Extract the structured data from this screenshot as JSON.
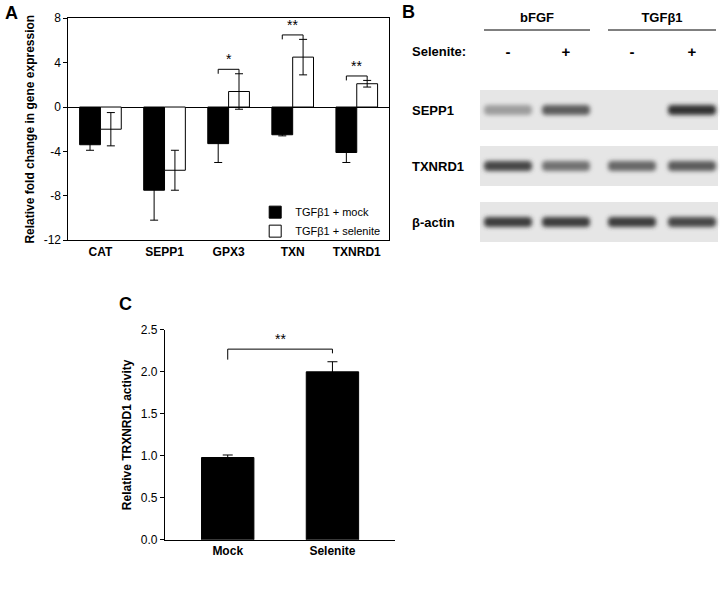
{
  "chart_data": [
    {
      "panel": "A",
      "type": "bar",
      "categories": [
        "CAT",
        "SEPP1",
        "GPX3",
        "TXN",
        "TXNRD1"
      ],
      "series": [
        {
          "name": "TGFβ1 + mock",
          "color": "#000000",
          "values": [
            -3.4,
            -7.5,
            -3.3,
            -2.5,
            -4.1
          ],
          "errors": [
            0.5,
            2.7,
            1.7,
            0.1,
            0.9
          ]
        },
        {
          "name": "TGFβ1 + selenite",
          "color": "#ffffff",
          "values": [
            -2.0,
            -5.7,
            1.4,
            4.5,
            2.1
          ],
          "errors": [
            1.5,
            1.8,
            1.6,
            1.6,
            0.3
          ]
        }
      ],
      "y_label": "Relative fold change in gene expression",
      "ylim": [
        -12,
        8
      ],
      "yticks": [
        -12,
        -8,
        -4,
        0,
        4,
        8
      ],
      "legend": "lower right",
      "significance": [
        {
          "categories": [
            "GPX3"
          ],
          "text": "*"
        },
        {
          "categories": [
            "TXN"
          ],
          "text": "**"
        },
        {
          "categories": [
            "TXNRD1"
          ],
          "text": "**"
        }
      ]
    },
    {
      "panel": "C",
      "type": "bar",
      "categories": [
        "Mock",
        "Selenite"
      ],
      "values": [
        0.98,
        2.0
      ],
      "errors": [
        0.03,
        0.12
      ],
      "color": "#000000",
      "y_label": "Relative TRXNRD1 activity",
      "ylim": [
        0,
        2.5
      ],
      "yticks": [
        {
          "value": 0,
          "label": "0.0"
        },
        {
          "value": 0.5,
          "label": "0.5"
        },
        {
          "value": 1,
          "label": "1.0"
        },
        {
          "value": 1.5,
          "label": "1.5"
        },
        {
          "value": 2,
          "label": "2.0"
        },
        {
          "value": 2.5,
          "label": "2.5"
        }
      ],
      "significance": [
        {
          "categories": [
            "Mock",
            "Selenite"
          ],
          "text": "**"
        }
      ]
    }
  ],
  "blot": {
    "panel": "B",
    "groups": [
      {
        "label": "bFGF",
        "lanes": [
          0,
          1
        ]
      },
      {
        "label": "TGFβ1",
        "lanes": [
          2,
          3
        ]
      }
    ],
    "treatment_label": "Selenite:",
    "treatment": [
      "-",
      "+",
      "-",
      "+"
    ],
    "rows": [
      {
        "label": "SEPP1",
        "intensity": [
          0.45,
          0.75,
          0,
          0.95
        ]
      },
      {
        "label": "TXNRD1",
        "intensity": [
          0.85,
          0.65,
          0.7,
          0.75
        ]
      },
      {
        "label": "β-actin",
        "intensity": [
          0.9,
          0.9,
          0.9,
          0.85
        ]
      }
    ]
  }
}
